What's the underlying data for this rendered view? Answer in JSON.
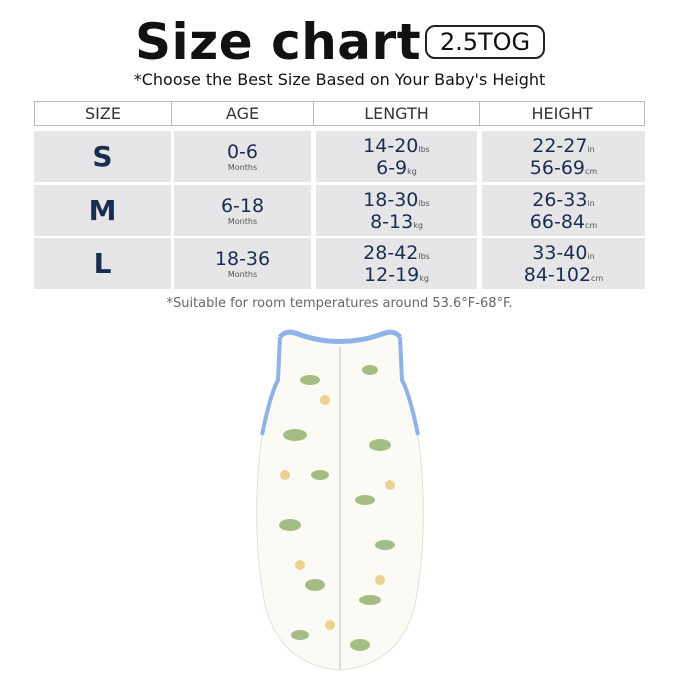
{
  "title": "Size chart",
  "tog_badge": "2.5TOG",
  "subtitle": "*Choose the Best Size Based on Your Baby's Height",
  "table": {
    "headers": [
      "SIZE",
      "AGE",
      "LENGTH",
      "HEIGHT"
    ],
    "rows": [
      {
        "size": "S",
        "age": "0-6",
        "age_unit": "Months",
        "lbs": "14-20",
        "lbs_unit": "lbs",
        "kg": "6-9",
        "kg_unit": "kg",
        "in": "22-27",
        "in_unit": "in",
        "cm": "56-69",
        "cm_unit": "cm"
      },
      {
        "size": "M",
        "age": "6-18",
        "age_unit": "Months",
        "lbs": "18-30",
        "lbs_unit": "lbs",
        "kg": "8-13",
        "kg_unit": "kg",
        "in": "26-33",
        "in_unit": "in",
        "cm": "66-84",
        "cm_unit": "cm"
      },
      {
        "size": "L",
        "age": "18-36",
        "age_unit": "Months",
        "lbs": "28-42",
        "lbs_unit": "lbs",
        "kg": "12-19",
        "kg_unit": "kg",
        "in": "33-40",
        "in_unit": "in",
        "cm": "84-102",
        "cm_unit": "cm"
      }
    ]
  },
  "note": "*Suitable for room temperatures around 53.6°F-68°F.",
  "colors": {
    "text": "#1b2d4f",
    "cell_bg": "#e6e6e8",
    "trim": "#8fb3e8"
  }
}
